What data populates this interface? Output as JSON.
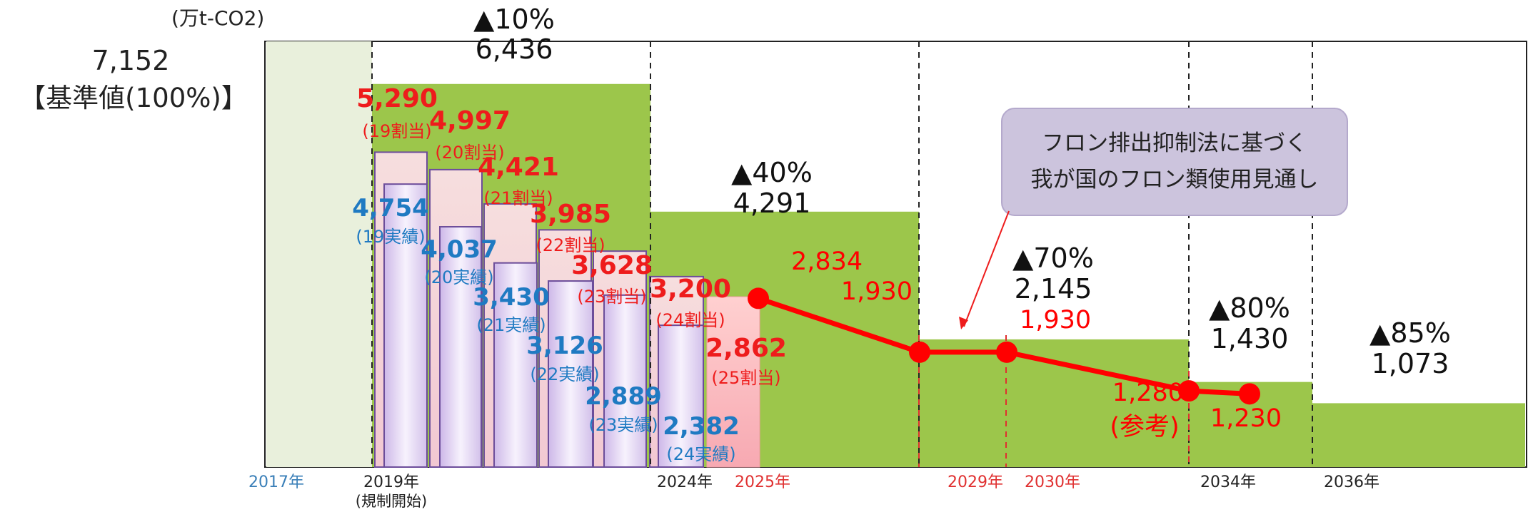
{
  "chart_data": {
    "type": "bar",
    "unit_label": "(万t-CO2)",
    "baseline": {
      "value_label": "7,152",
      "caption": "【基準値(100%)】",
      "value": 7152
    },
    "phasedown_steps": [
      {
        "period": "2019-2023",
        "reduction_label": "▲10%",
        "value_label": "6,436",
        "value": 6436
      },
      {
        "period": "2024-2028",
        "reduction_label": "▲40%",
        "value_label": "4,291",
        "value": 4291
      },
      {
        "period": "2029-2033",
        "reduction_label": "▲70%",
        "value_label": "2,145",
        "value": 2145
      },
      {
        "period": "2034-2035",
        "reduction_label": "▲80%",
        "value_label": "1,430",
        "value": 1430
      },
      {
        "period": "2036-",
        "reduction_label": "▲85%",
        "value_label": "1,073",
        "value": 1073
      }
    ],
    "allocations": [
      {
        "value": 5290,
        "value_label": "5,290",
        "note": "(19割当)"
      },
      {
        "value": 4997,
        "value_label": "4,997",
        "note": "(20割当)"
      },
      {
        "value": 4421,
        "value_label": "4,421",
        "note": "(21割当)"
      },
      {
        "value": 3985,
        "value_label": "3,985",
        "note": "(22割当)"
      },
      {
        "value": 3628,
        "value_label": "3,628",
        "note": "(23割当)"
      },
      {
        "value": 3200,
        "value_label": "3,200",
        "note": "(24割当)"
      },
      {
        "value": 2862,
        "value_label": "2,862",
        "note": "(25割当)"
      }
    ],
    "actuals": [
      {
        "value": 4754,
        "value_label": "4,754",
        "note": "(19実績)"
      },
      {
        "value": 4037,
        "value_label": "4,037",
        "note": "(20実績)"
      },
      {
        "value": 3430,
        "value_label": "3,430",
        "note": "(21実績)"
      },
      {
        "value": 3126,
        "value_label": "3,126",
        "note": "(22実績)"
      },
      {
        "value": 2889,
        "value_label": "2,889",
        "note": "(23実績)"
      },
      {
        "value": 2382,
        "value_label": "2,382",
        "note": "(24実績)"
      }
    ],
    "outlook": {
      "callout": [
        "フロン排出抑制法に基づく",
        "我が国のフロン類使用見通し"
      ],
      "points": [
        {
          "year": 2025,
          "value": 2834,
          "label": "2,834"
        },
        {
          "year": 2029,
          "value": 1930,
          "label": "1,930"
        },
        {
          "year": 2030,
          "value": 1930,
          "label": "1,930"
        },
        {
          "year": 2034,
          "value": 1280,
          "label": "1,280",
          "note": "(参考)"
        },
        {
          "year": 2035,
          "value": 1230,
          "label": "1,230"
        }
      ]
    },
    "year_labels": [
      {
        "label": "2017年",
        "color": "#3a7fb8"
      },
      {
        "label": "2019年",
        "sub": "(規制開始)",
        "color": "#222222"
      },
      {
        "label": "2024年",
        "color": "#222222"
      },
      {
        "label": "2025年",
        "color": "#e03030"
      },
      {
        "label": "2029年",
        "color": "#e03030"
      },
      {
        "label": "2030年",
        "color": "#e03030"
      },
      {
        "label": "2034年",
        "color": "#222222"
      },
      {
        "label": "2036年",
        "color": "#222222"
      }
    ],
    "colors": {
      "baseline_fill": "#e9f0dc",
      "cap_fill": "#9cc64b",
      "allocation_text": "#ee1c1c",
      "actual_text": "#1f7ac2",
      "outlook_line": "#ff0000",
      "callout_fill": "#ccc4dd"
    }
  }
}
